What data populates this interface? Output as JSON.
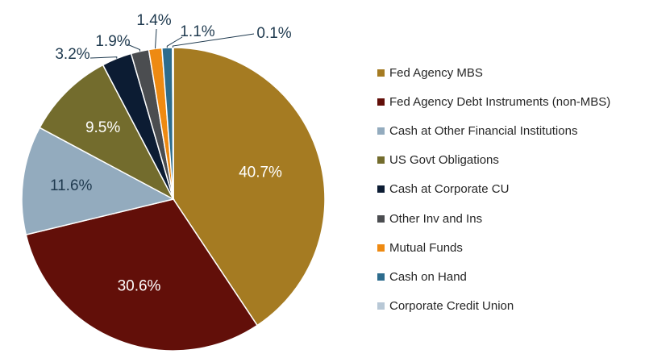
{
  "chart_data": {
    "type": "pie",
    "title": "",
    "legend_position": "right",
    "slices": [
      {
        "name": "Fed Agency MBS",
        "value": 40.7,
        "label": "40.7%",
        "color": "#A57B22",
        "label_color": "#ffffff"
      },
      {
        "name": "Fed Agency Debt Instruments (non-MBS)",
        "value": 30.6,
        "label": "30.6%",
        "color": "#620F09",
        "label_color": "#ffffff"
      },
      {
        "name": "Cash at Other Financial Institutions",
        "value": 11.6,
        "label": "11.6%",
        "color": "#93ABBE",
        "label_color": "#1f3a4f"
      },
      {
        "name": "US Govt Obligations",
        "value": 9.5,
        "label": "9.5%",
        "color": "#736C2D",
        "label_color": "#ffffff"
      },
      {
        "name": "Cash at Corporate CU",
        "value": 3.2,
        "label": "3.2%",
        "color": "#0C1C33",
        "label_color": "#1f3a4f"
      },
      {
        "name": "Other Inv and Ins",
        "value": 1.9,
        "label": "1.9%",
        "color": "#4B4D50",
        "label_color": "#1f3a4f"
      },
      {
        "name": "Mutual Funds",
        "value": 1.4,
        "label": "1.4%",
        "color": "#EE8A12",
        "label_color": "#1f3a4f"
      },
      {
        "name": "Cash on Hand",
        "value": 1.1,
        "label": "1.1%",
        "color": "#2D6C8D",
        "label_color": "#1f3a4f"
      },
      {
        "name": "Corporate Credit Union",
        "value": 0.1,
        "label": "0.1%",
        "color": "#B8C8D6",
        "label_color": "#1f3a4f"
      }
    ]
  }
}
